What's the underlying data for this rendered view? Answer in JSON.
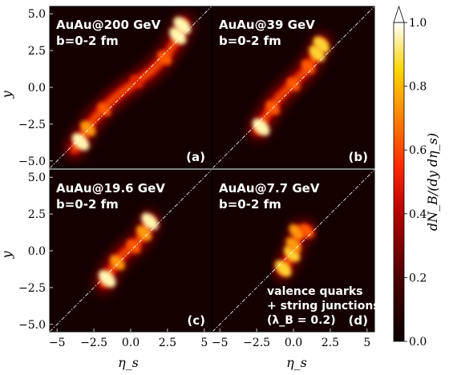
{
  "chart_data": {
    "type": "heatmap",
    "xlabel": "η_s",
    "ylabel": "y",
    "xlim": [
      -5.5,
      5.5
    ],
    "ylim": [
      -5.5,
      5.5
    ],
    "x_ticks": [
      "−5",
      "−2.5",
      "0.0",
      "2.5",
      "5"
    ],
    "y_ticks": [
      "5.0",
      "2.5",
      "0.0",
      "−2.5",
      "−5.0"
    ],
    "grid": false,
    "colormap": "hot",
    "background_color": "#150000",
    "colorbar": {
      "label": "dN_B/(dy dη_s)",
      "range": [
        0.0,
        1.0
      ],
      "ticks": [
        "0.0",
        "0.2",
        "0.4",
        "0.6",
        "0.8",
        "1.0"
      ],
      "extend": "max"
    },
    "panels": [
      {
        "id": "a",
        "tag": "(a)",
        "system": "AuAu@200 GeV",
        "centrality": "b=0-2 fm",
        "ridge": [
          [
            -3.8,
            -4.2
          ],
          [
            -3.2,
            -3.2
          ],
          [
            -2.6,
            -2.3
          ],
          [
            -2.0,
            -1.6
          ],
          [
            -1.4,
            -1.0
          ],
          [
            -0.7,
            -0.4
          ],
          [
            0.0,
            0.1
          ],
          [
            0.7,
            0.6
          ],
          [
            1.4,
            1.1
          ],
          [
            2.0,
            1.7
          ],
          [
            2.6,
            2.4
          ],
          [
            3.2,
            3.4
          ],
          [
            3.6,
            4.3
          ]
        ],
        "hotspots": [
          {
            "x": -3.4,
            "y": -3.7,
            "density": 1.0
          },
          {
            "x": -2.9,
            "y": -2.8,
            "density": 0.75
          },
          {
            "x": -1.8,
            "y": -1.5,
            "density": 0.5
          },
          {
            "x": 0.4,
            "y": 0.4,
            "density": 0.45
          },
          {
            "x": 2.3,
            "y": 2.0,
            "density": 0.6
          },
          {
            "x": 3.2,
            "y": 3.5,
            "density": 0.95
          },
          {
            "x": 3.5,
            "y": 4.2,
            "density": 1.0
          }
        ]
      },
      {
        "id": "b",
        "tag": "(b)",
        "system": "AuAu@39 GeV",
        "centrality": "b=0-2 fm",
        "ridge": [
          [
            -2.4,
            -2.9
          ],
          [
            -2.0,
            -2.2
          ],
          [
            -1.5,
            -1.4
          ],
          [
            -1.0,
            -0.7
          ],
          [
            -0.4,
            -0.1
          ],
          [
            0.2,
            0.5
          ],
          [
            0.8,
            1.1
          ],
          [
            1.3,
            1.8
          ],
          [
            1.6,
            2.4
          ],
          [
            1.9,
            3.0
          ]
        ],
        "hotspots": [
          {
            "x": -2.2,
            "y": -2.7,
            "density": 1.0
          },
          {
            "x": -1.4,
            "y": -1.4,
            "density": 0.6
          },
          {
            "x": 0.0,
            "y": 0.2,
            "density": 0.5
          },
          {
            "x": 1.0,
            "y": 1.4,
            "density": 0.6
          },
          {
            "x": 1.6,
            "y": 2.3,
            "density": 0.85
          },
          {
            "x": 1.9,
            "y": 2.9,
            "density": 0.9
          }
        ]
      },
      {
        "id": "c",
        "tag": "(c)",
        "system": "AuAu@19.6 GeV",
        "centrality": "b=0-2 fm",
        "ridge": [
          [
            -1.8,
            -2.2
          ],
          [
            -1.4,
            -1.4
          ],
          [
            -1.0,
            -0.8
          ],
          [
            -0.5,
            -0.2
          ],
          [
            0.0,
            0.2
          ],
          [
            0.5,
            0.6
          ],
          [
            1.0,
            1.3
          ],
          [
            1.3,
            2.0
          ]
        ],
        "hotspots": [
          {
            "x": -1.6,
            "y": -1.9,
            "density": 1.0
          },
          {
            "x": -0.9,
            "y": -0.8,
            "density": 0.7
          },
          {
            "x": 0.2,
            "y": 0.3,
            "density": 0.6
          },
          {
            "x": 0.9,
            "y": 1.2,
            "density": 0.75
          },
          {
            "x": 1.3,
            "y": 2.0,
            "density": 0.95
          }
        ]
      },
      {
        "id": "d",
        "tag": "(d)",
        "system": "AuAu@7.7 GeV",
        "centrality": "b=0-2 fm",
        "note": [
          "valence quarks",
          "+ string junctions",
          "(λ_B = 0.2)"
        ],
        "ridge": [
          [
            -0.7,
            -1.3
          ],
          [
            -0.3,
            -0.6
          ],
          [
            0.0,
            0.0
          ],
          [
            0.2,
            0.7
          ],
          [
            0.4,
            1.3
          ],
          [
            0.9,
            1.35
          ]
        ],
        "hotspots": [
          {
            "x": -0.7,
            "y": -1.2,
            "density": 0.9
          },
          {
            "x": -0.1,
            "y": -0.2,
            "density": 0.85
          },
          {
            "x": 0.0,
            "y": 0.4,
            "density": 0.75
          },
          {
            "x": 0.2,
            "y": 1.3,
            "density": 0.7
          },
          {
            "x": 0.9,
            "y": 1.35,
            "density": 0.6
          }
        ]
      }
    ]
  }
}
